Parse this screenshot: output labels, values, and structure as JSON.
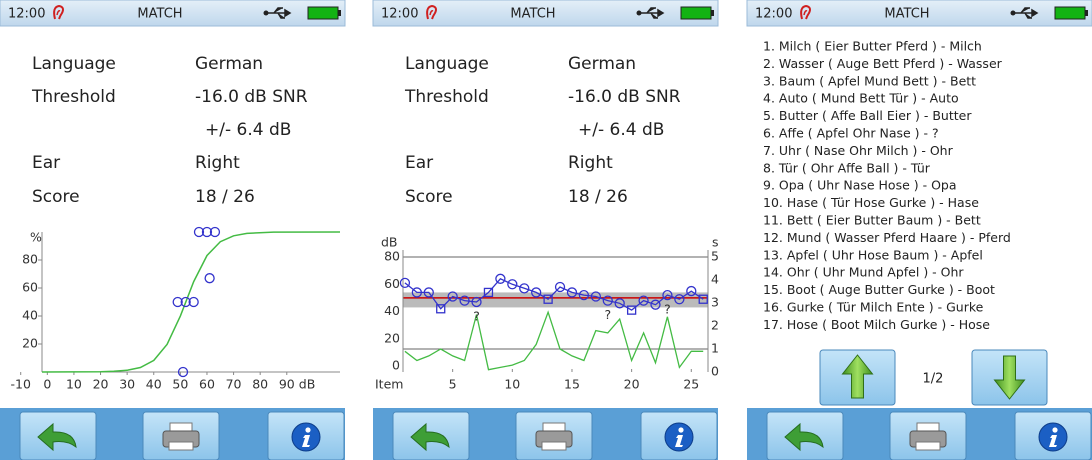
{
  "status_bar": {
    "time": "12:00",
    "title": "MATCH"
  },
  "info": {
    "rows": [
      {
        "label": "Language",
        "value": "German"
      },
      {
        "label": "Threshold",
        "value": "-16.0 dB SNR"
      },
      {
        "label": "Ear",
        "value": "Right"
      },
      {
        "label": "Score",
        "value": "18 / 26"
      }
    ],
    "threshold_sd": "+/- 6.4 dB"
  },
  "chart_data": [
    {
      "type": "psychometric",
      "y_label": "%",
      "x_unit": "dB",
      "xlim": [
        -2,
        110
      ],
      "ylim": [
        0,
        100
      ],
      "xticks": [
        -10,
        0,
        10,
        20,
        30,
        40,
        50,
        60,
        70,
        80,
        90
      ],
      "yticks": [
        20,
        40,
        60,
        80
      ],
      "points": {
        "color": "#3333cc",
        "x": [
          49,
          52,
          55,
          57,
          60,
          63,
          61,
          51
        ],
        "y": [
          50,
          50,
          50,
          100,
          100,
          100,
          67,
          0
        ]
      },
      "curve": {
        "color": "#44bb44",
        "x": [
          -2,
          20,
          25,
          30,
          35,
          40,
          45,
          50,
          55,
          60,
          65,
          70,
          75,
          85,
          110
        ],
        "y": [
          0,
          0.2,
          0.5,
          1.2,
          3.2,
          8.3,
          19.8,
          40.1,
          64.6,
          83.2,
          93.1,
          97.3,
          99.0,
          99.9,
          100
        ]
      }
    },
    {
      "type": "track",
      "x_label": "Item",
      "y_label": "dB",
      "y2_label": "s",
      "xlim": [
        0,
        26.4
      ],
      "ylim": [
        0,
        80
      ],
      "y2lim": [
        0,
        5
      ],
      "xticks": [
        5,
        10,
        15,
        20,
        25
      ],
      "yticks": [
        0,
        20,
        40,
        60,
        80
      ],
      "y2ticks": [
        0,
        1,
        2,
        3,
        4,
        5
      ],
      "y2_grid": [
        1,
        5
      ],
      "reference": {
        "value": 50,
        "color": "#cc0000"
      },
      "band": {
        "range": [
          43,
          54
        ],
        "color": "#bbbbbb"
      },
      "square_items": [
        4,
        8,
        13,
        20,
        26
      ],
      "question_items": [
        7,
        18,
        23
      ],
      "question_label": "?",
      "series": [
        {
          "color": "#3333cc",
          "values": [
            61,
            54,
            54,
            42,
            51,
            48,
            47,
            54,
            64,
            60,
            57,
            54,
            49,
            58,
            54,
            52,
            51,
            48,
            46,
            41,
            48,
            45,
            52,
            49,
            55,
            49
          ]
        },
        {
          "color": "#44bb44",
          "axis": "y2",
          "values": [
            0.9,
            0.5,
            0.7,
            1.0,
            0.7,
            0.5,
            2.5,
            0.1,
            0.2,
            0.3,
            0.5,
            1.2,
            2.6,
            1.0,
            0.7,
            0.5,
            1.8,
            1.7,
            2.3,
            0.5,
            1.7,
            0.4,
            2.4,
            0.2,
            0.9,
            0.9
          ]
        }
      ]
    }
  ],
  "list": {
    "items": [
      "1. Milch ( Eier Butter Pferd ) - Milch",
      "2. Wasser ( Auge Bett Pferd ) - Wasser",
      "3. Baum ( Apfel Mund Bett ) - Bett",
      "4. Auto ( Mund Bett Tür ) - Auto",
      "5. Butter ( Affe Ball Eier ) - Butter",
      "6. Affe ( Apfel Ohr Nase ) - ?",
      "7. Uhr ( Nase Ohr Milch ) - Ohr",
      "8. Tür ( Ohr Affe Ball ) - Tür",
      "9. Opa ( Uhr Nase Hose ) - Opa",
      "10. Hase ( Tür Hose Gurke ) - Hase",
      "11. Bett ( Eier Butter Baum ) - Bett",
      "12. Mund ( Wasser Pferd Haare ) - Pferd",
      "13. Apfel ( Uhr Hose Baum ) - Apfel",
      "14. Ohr ( Uhr Mund Apfel ) - Ohr",
      "15. Boot ( Auge Butter Gurke ) - Boot",
      "16. Gurke ( Tür Milch Ente ) - Gurke",
      "17. Hose ( Boot Milch Gurke ) - Hose"
    ],
    "highlighted": [
      2,
      5,
      6,
      11
    ],
    "highlight_color": "#cc2222",
    "page": "1/2"
  }
}
